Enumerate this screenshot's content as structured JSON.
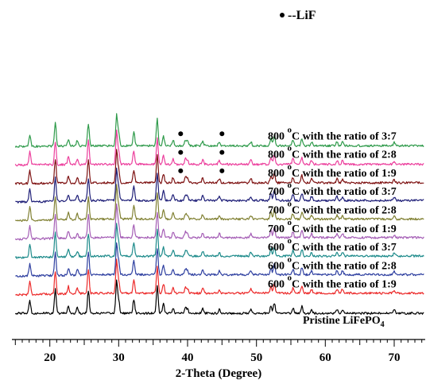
{
  "chart_data": {
    "type": "line",
    "title": "",
    "xlabel": "2-Theta (Degree)",
    "ylabel": "",
    "xlim": [
      14.5,
      74.5
    ],
    "xticks": [
      20,
      30,
      40,
      50,
      60,
      70
    ],
    "xtick_labels": [
      "20",
      "30",
      "40",
      "50",
      "60",
      "70"
    ],
    "grid": false,
    "legend": {
      "marker": "•",
      "text": "--LiF"
    },
    "stack_step": 23.3,
    "noise_amp": 1.3,
    "series": [
      {
        "name": "Pristine LiFePO4",
        "label_main": "Pristine LiFePO",
        "label_sub": "4",
        "color": "#000000",
        "rise": 0
      },
      {
        "name": "600 oC with the ratio of 1:9",
        "label_temp": "600",
        "label_sup": "o",
        "label_rest": "C with the ratio of 1:9",
        "color": "#ec2a2a",
        "rise": 2
      },
      {
        "name": "600 oC with the ratio of 2:8",
        "label_temp": "600",
        "label_sup": "o",
        "label_rest": "C with the ratio of 2:8",
        "color": "#2e3fa0",
        "rise": 2
      },
      {
        "name": "600 oC with the ratio of 3:7",
        "label_temp": "600",
        "label_sup": "o",
        "label_rest": "C with the ratio of 3:7",
        "color": "#1c8a8a",
        "rise": 2
      },
      {
        "name": "700 oC with the ratio of 1:9",
        "label_temp": "700",
        "label_sup": "o",
        "label_rest": "C with the ratio of 1:9",
        "color": "#a45db5",
        "rise": 2
      },
      {
        "name": "700 oC with the ratio of 2:8",
        "label_temp": "700",
        "label_sup": "o",
        "label_rest": "C with the ratio of 2:8",
        "color": "#808032",
        "rise": 2
      },
      {
        "name": "700 oC with the ratio of 3:7",
        "label_temp": "700",
        "label_sup": "o",
        "label_rest": "C with the ratio of 3:7",
        "color": "#1f1f78",
        "rise": 2
      },
      {
        "name": "800 oC with the ratio of 1:9",
        "label_temp": "800",
        "label_sup": "o",
        "label_rest": "C with the ratio of 1:9",
        "color": "#7e1212",
        "rise": 1
      },
      {
        "name": "800 oC with the ratio of 2:8",
        "label_temp": "800",
        "label_sup": "o",
        "label_rest": "C with the ratio of 2:8",
        "color": "#ec3e9c",
        "rise": 1
      },
      {
        "name": "800 oC with the ratio of 3:7",
        "label_temp": "800",
        "label_sup": "o",
        "label_rest": "C with the ratio of 3:7",
        "color": "#2e9a4a",
        "rise": 1
      }
    ],
    "peaks": [
      {
        "x": 17.1,
        "h": 16
      },
      {
        "x": 20.8,
        "h": 30
      },
      {
        "x": 22.7,
        "h": 9
      },
      {
        "x": 24.0,
        "h": 7
      },
      {
        "x": 25.6,
        "h": 29
      },
      {
        "x": 29.7,
        "h": 40
      },
      {
        "x": 30.0,
        "h": 16
      },
      {
        "x": 32.2,
        "h": 17
      },
      {
        "x": 35.6,
        "h": 34
      },
      {
        "x": 36.5,
        "h": 12
      },
      {
        "x": 37.9,
        "h": 7
      },
      {
        "x": 39.7,
        "h": 7
      },
      {
        "x": 40.0,
        "h": 5
      },
      {
        "x": 42.2,
        "h": 6
      },
      {
        "x": 44.6,
        "h": 5
      },
      {
        "x": 49.2,
        "h": 5
      },
      {
        "x": 52.1,
        "h": 9
      },
      {
        "x": 52.6,
        "h": 13
      },
      {
        "x": 55.3,
        "h": 7
      },
      {
        "x": 56.6,
        "h": 9
      },
      {
        "x": 58.0,
        "h": 5
      },
      {
        "x": 61.7,
        "h": 5
      },
      {
        "x": 62.5,
        "h": 5
      },
      {
        "x": 70.0,
        "h": 4
      }
    ],
    "lif_markers": {
      "x": [
        39.0,
        45.0
      ],
      "series": [
        7,
        8,
        9
      ]
    }
  }
}
